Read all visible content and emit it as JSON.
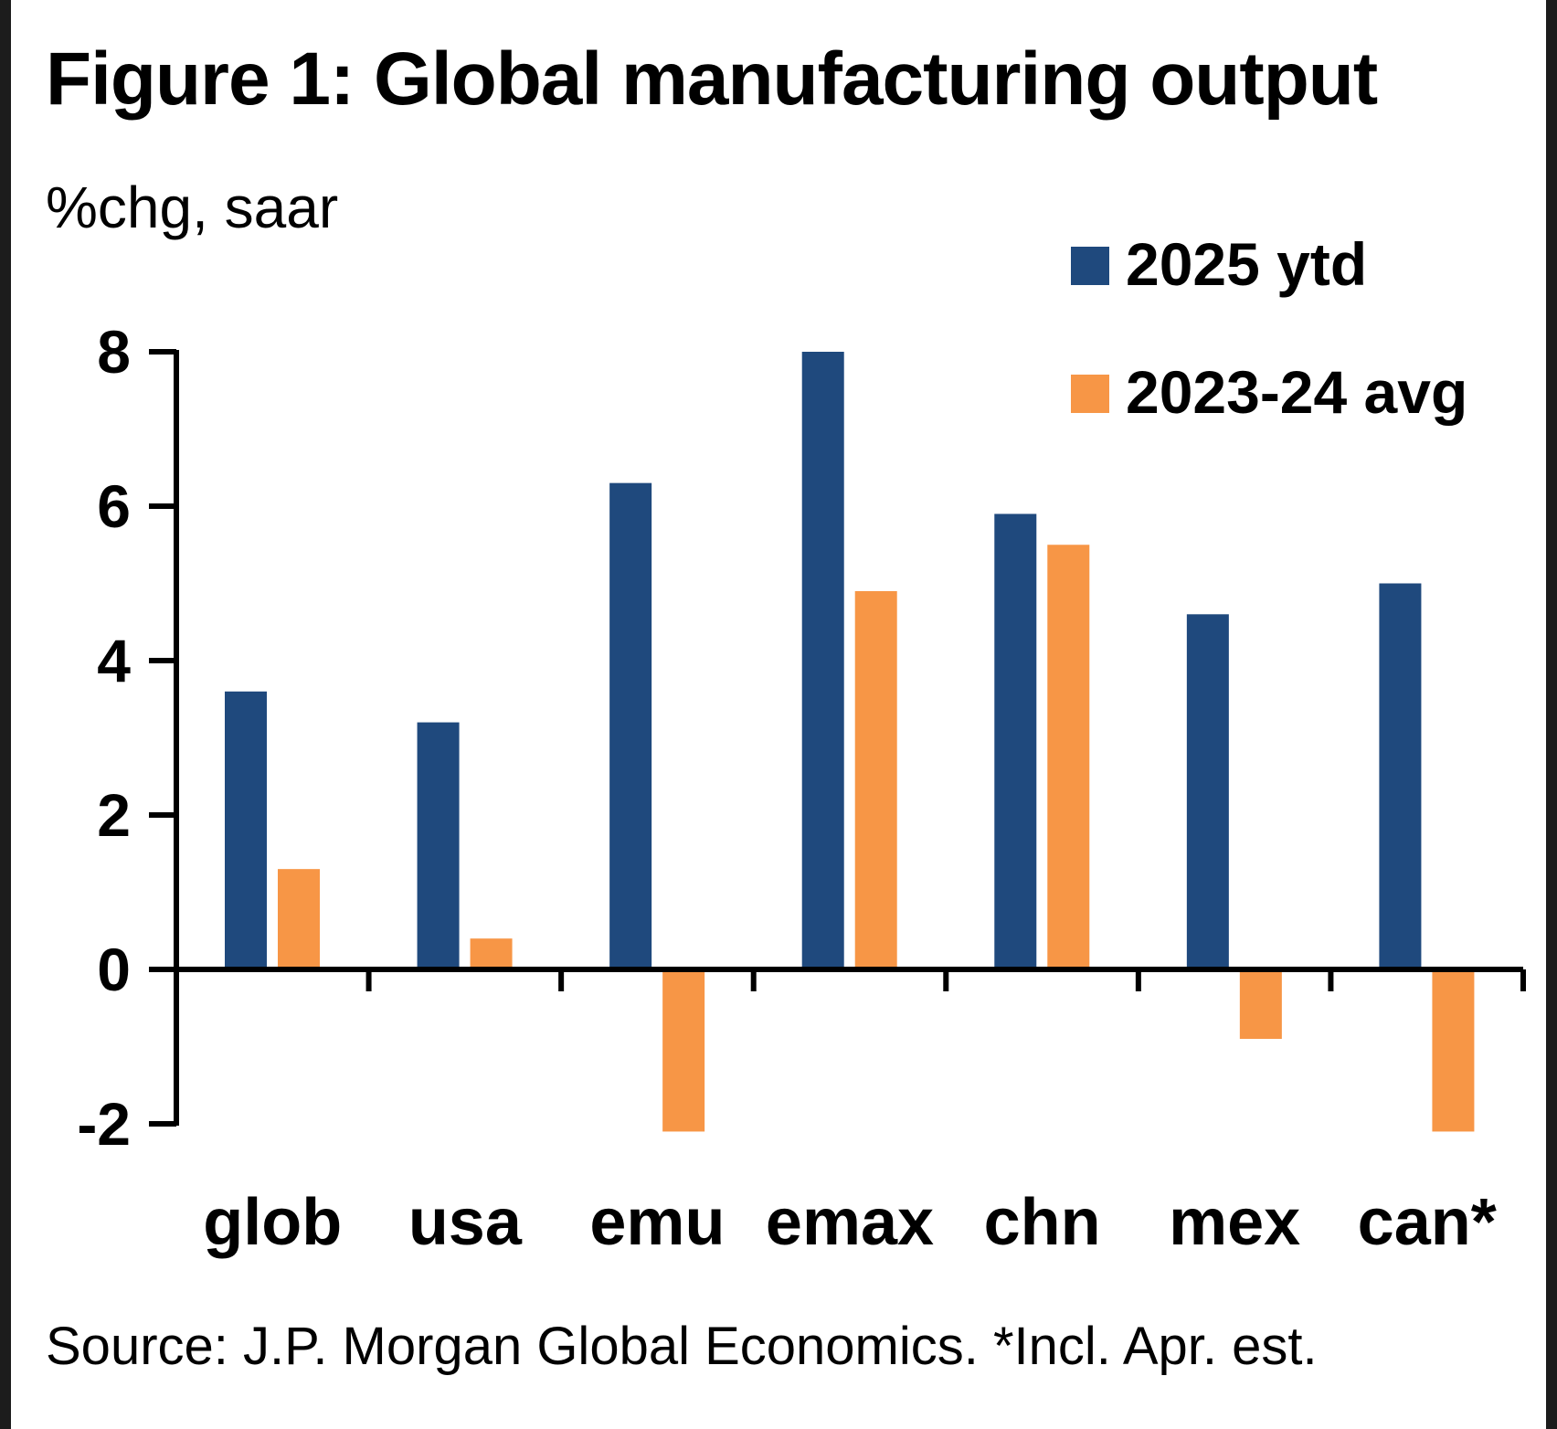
{
  "chart_data": {
    "type": "bar",
    "title": "Figure 1: Global manufacturing output",
    "ylabel": "%chg, saar",
    "xlabel": "",
    "categories": [
      "glob",
      "usa",
      "emu",
      "emax",
      "chn",
      "mex",
      "can*"
    ],
    "series": [
      {
        "name": "2025 ytd",
        "color": "#1F497D",
        "values": [
          3.6,
          3.2,
          6.3,
          8.0,
          5.9,
          4.6,
          5.0
        ]
      },
      {
        "name": "2023-24 avg",
        "color": "#F79646",
        "values": [
          1.3,
          0.4,
          -2.1,
          4.9,
          5.5,
          -0.9,
          -2.1
        ]
      }
    ],
    "ylim": [
      -2,
      8
    ],
    "yticks": [
      "8",
      "6",
      "4",
      "2",
      "0",
      "-2"
    ],
    "ytick_values": [
      8,
      6,
      4,
      2,
      0,
      -2
    ],
    "grid": false,
    "legend_position": "top-right",
    "source": "Source: J.P. Morgan Global Economics. *Incl. Apr. est."
  }
}
